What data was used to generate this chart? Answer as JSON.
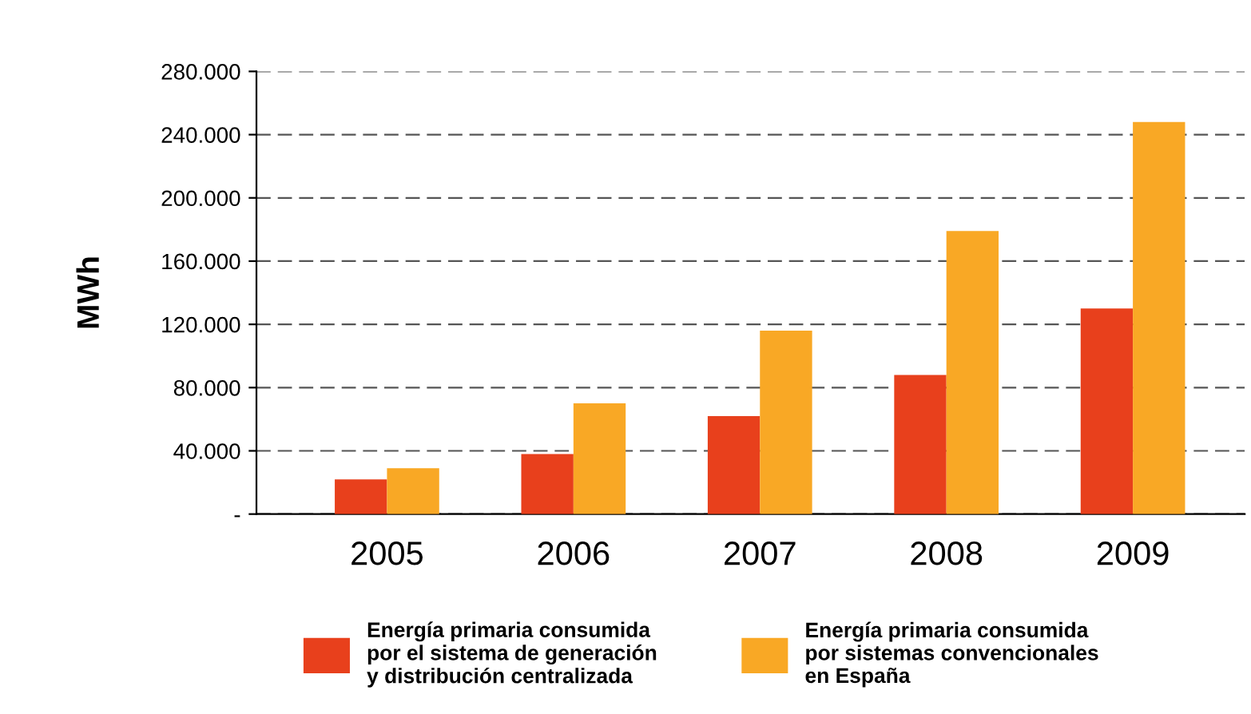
{
  "chart_data": {
    "type": "bar",
    "ylabel": "MWh",
    "categories": [
      "2005",
      "2006",
      "2007",
      "2008",
      "2009"
    ],
    "series": [
      {
        "name": "Energía primaria consumida\npor el sistema de generación\ny distribución centralizada",
        "color": "#e8401c",
        "values": [
          22000,
          38000,
          62000,
          88000,
          130000
        ]
      },
      {
        "name": "Energía primaria consumida\npor sistemas convencionales\nen España",
        "color": "#f9a825",
        "values": [
          29000,
          70000,
          116000,
          179000,
          248000
        ]
      }
    ],
    "ylim": [
      0,
      280000
    ],
    "yticks": [
      {
        "value": 0,
        "label": "-"
      },
      {
        "value": 40000,
        "label": "40.000"
      },
      {
        "value": 80000,
        "label": "80.000"
      },
      {
        "value": 120000,
        "label": "120.000"
      },
      {
        "value": 160000,
        "label": "160.000"
      },
      {
        "value": 200000,
        "label": "200.000"
      },
      {
        "value": 240000,
        "label": "240.000"
      },
      {
        "value": 280000,
        "label": "280.000"
      }
    ],
    "grid": "y",
    "legend": "bottom"
  }
}
